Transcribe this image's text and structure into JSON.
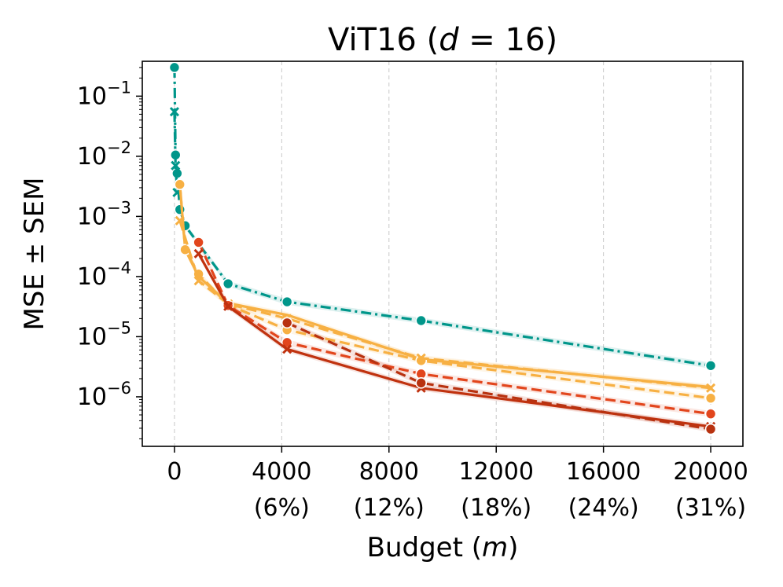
{
  "chart_data": {
    "type": "line",
    "title": "ViT16 (d = 16)",
    "title_parts": {
      "prefix": "ViT16 (",
      "var": "d",
      "op": " = 16)"
    },
    "xlabel": "Budget (m)",
    "xlabel_parts": {
      "prefix": "Budget (",
      "var": "m",
      "suffix": ")"
    },
    "ylabel": "MSE ± SEM",
    "yscale": "log",
    "xlim": [
      -1200,
      21200
    ],
    "ylim": [
      1.5e-07,
      0.38
    ],
    "x_ticks": [
      {
        "value": 0,
        "label": "0",
        "sub": ""
      },
      {
        "value": 4000,
        "label": "4000",
        "sub": "(6%)"
      },
      {
        "value": 8000,
        "label": "8000",
        "sub": "(12%)"
      },
      {
        "value": 12000,
        "label": "12000",
        "sub": "(18%)"
      },
      {
        "value": 16000,
        "label": "16000",
        "sub": "(24%)"
      },
      {
        "value": 20000,
        "label": "20000",
        "sub": "(31%)"
      }
    ],
    "y_ticks": [
      {
        "value": 1e-06,
        "base": "10",
        "exp": "−6"
      },
      {
        "value": 1e-05,
        "base": "10",
        "exp": "−5"
      },
      {
        "value": 0.0001,
        "base": "10",
        "exp": "−4"
      },
      {
        "value": 0.001,
        "base": "10",
        "exp": "−3"
      },
      {
        "value": 0.01,
        "base": "10",
        "exp": "−2"
      },
      {
        "value": 0.1,
        "base": "10",
        "exp": "−1"
      }
    ],
    "grid": "x-dashed",
    "series": [
      {
        "name": "teal-dashdot",
        "color": "#00968a",
        "dash": "dashdot",
        "marker": "circle",
        "x": [
          0,
          40,
          100,
          200,
          400,
          2000,
          4200,
          9200,
          20000
        ],
        "y": [
          0.3,
          0.0105,
          0.0052,
          0.0013,
          0.0007,
          7.6e-05,
          3.8e-05,
          1.85e-05,
          3.3e-06
        ]
      },
      {
        "name": "teal-dashdot-x",
        "color": "#00968a",
        "dash": "dashdot",
        "marker": "x",
        "x": [
          0,
          40,
          100
        ],
        "y": [
          0.055,
          0.007,
          0.0025
        ]
      },
      {
        "name": "orange-solid",
        "color": "#f7b043",
        "dash": "solid",
        "marker": "none",
        "x": [
          200,
          400,
          900,
          2000,
          4200,
          9200,
          20000
        ],
        "y": [
          0.0035,
          0.00028,
          0.0001,
          3.6e-05,
          2.3e-05,
          4.2e-06,
          1.45e-06
        ]
      },
      {
        "name": "orange-dashed-circle",
        "color": "#f7b043",
        "dash": "dashed",
        "marker": "circle",
        "x": [
          200,
          400,
          900,
          2000,
          4200,
          9200,
          20000
        ],
        "y": [
          0.0034,
          0.00028,
          0.00011,
          3.4e-05,
          1.3e-05,
          4e-06,
          9.5e-07
        ]
      },
      {
        "name": "orange-dashed-x",
        "color": "#f7b043",
        "dash": "dashed",
        "marker": "x",
        "x": [
          200,
          900,
          2000,
          4200,
          9200,
          20000
        ],
        "y": [
          0.00085,
          8.5e-05,
          3.5e-05,
          2e-05,
          4.4e-06,
          1.4e-06
        ]
      },
      {
        "name": "red-dashed",
        "color": "#e2461d",
        "dash": "dashed",
        "marker": "circle",
        "x": [
          900,
          2000,
          4200,
          9200,
          20000
        ],
        "y": [
          0.00037,
          3.3e-05,
          8e-06,
          2.4e-06,
          5.2e-07
        ]
      },
      {
        "name": "dark-red-solid",
        "color": "#c0320f",
        "dash": "solid",
        "marker": "x",
        "x": [
          900,
          2000,
          4200,
          9200,
          20000
        ],
        "y": [
          0.00024,
          3.2e-05,
          6.2e-06,
          1.4e-06,
          3.2e-07
        ]
      },
      {
        "name": "dark-red-dashed",
        "color": "#b83210",
        "dash": "dashed",
        "marker": "circle",
        "x": [
          4200,
          9200,
          20000
        ],
        "y": [
          1.7e-05,
          1.7e-06,
          2.9e-07
        ]
      }
    ]
  }
}
